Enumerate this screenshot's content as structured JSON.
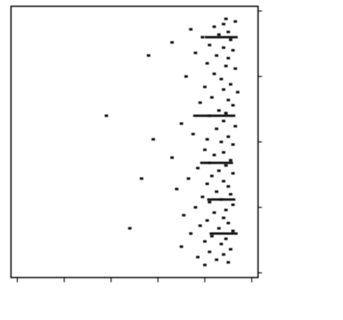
{
  "chart_data": {
    "type": "scatter",
    "orientation": "rotated-90",
    "title": "",
    "xlabel": "",
    "ylabel": "",
    "x_axis_tick_labels": [
      "",
      "",
      "",
      "",
      ""
    ],
    "y_axis_tick_labels": [
      "",
      "",
      "",
      "",
      "",
      ""
    ],
    "ylim": [
      0,
      5
    ],
    "xlim": [
      0,
      100
    ],
    "grid": false,
    "legend": "none",
    "colors": {
      "marks": "#111111",
      "frame": "#000000",
      "background": "#ffffff"
    },
    "series": [
      {
        "points": [
          {
            "x": 3,
            "y": 0.55
          },
          {
            "x": 4,
            "y": 0.35
          },
          {
            "x": 5,
            "y": 0.6
          },
          {
            "x": 6,
            "y": 0.8
          },
          {
            "x": 7,
            "y": 1.3
          },
          {
            "x": 8,
            "y": 0.5
          },
          {
            "x": 9,
            "y": 0.7
          },
          {
            "x": 10,
            "y": 1.05
          },
          {
            "x": 11,
            "y": 0.45
          },
          {
            "x": 12,
            "y": 1.7
          },
          {
            "x": 13,
            "y": 0.9
          },
          {
            "x": 14,
            "y": 0.6
          },
          {
            "x": 15,
            "y": 0.4
          },
          {
            "x": 16,
            "y": 1.2
          },
          {
            "x": 17,
            "y": 0.75
          },
          {
            "x": 18,
            "y": 0.5
          },
          {
            "x": 20,
            "y": 0.95
          },
          {
            "x": 21,
            "y": 0.55
          },
          {
            "x": 22,
            "y": 0.35
          },
          {
            "x": 24,
            "y": 0.8
          },
          {
            "x": 25,
            "y": 1.4
          },
          {
            "x": 26,
            "y": 0.65
          },
          {
            "x": 28,
            "y": 0.45
          },
          {
            "x": 29,
            "y": 1.0
          },
          {
            "x": 30,
            "y": 0.6
          },
          {
            "x": 31,
            "y": 0.3
          },
          {
            "x": 33,
            "y": 0.85
          },
          {
            "x": 34,
            "y": 0.5
          },
          {
            "x": 35,
            "y": 1.1
          },
          {
            "x": 36,
            "y": 0.4
          },
          {
            "x": 38,
            "y": 0.7
          },
          {
            "x": 39,
            "y": 0.55
          },
          {
            "x": 40,
            "y": 0.9
          },
          {
            "x": 42,
            "y": 0.6
          },
          {
            "x": 43,
            "y": 1.5
          },
          {
            "x": 44,
            "y": 0.35
          },
          {
            "x": 45,
            "y": 0.75
          },
          {
            "x": 47,
            "y": 1.25
          },
          {
            "x": 48,
            "y": 0.5
          },
          {
            "x": 49,
            "y": 0.95
          },
          {
            "x": 50,
            "y": 0.65
          },
          {
            "x": 51,
            "y": 0.4
          },
          {
            "x": 53,
            "y": 1.0
          },
          {
            "x": 54,
            "y": 0.6
          },
          {
            "x": 55,
            "y": 0.8
          },
          {
            "x": 56,
            "y": 1.7
          },
          {
            "x": 57,
            "y": 0.45
          },
          {
            "x": 58,
            "y": 0.9
          },
          {
            "x": 59,
            "y": 0.55
          },
          {
            "x": 60,
            "y": 1.15
          },
          {
            "x": 61,
            "y": 0.7
          },
          {
            "x": 62,
            "y": 0.4
          },
          {
            "x": 63,
            "y": 0.85
          },
          {
            "x": 64,
            "y": 1.35
          },
          {
            "x": 65,
            "y": 0.6
          },
          {
            "x": 66,
            "y": 0.95
          },
          {
            "x": 67,
            "y": 0.5
          },
          {
            "x": 68,
            "y": 1.6
          },
          {
            "x": 69,
            "y": 0.75
          },
          {
            "x": 70,
            "y": 0.45
          },
          {
            "x": 71,
            "y": 1.05
          },
          {
            "x": 72,
            "y": 0.65
          },
          {
            "x": 73,
            "y": 0.9
          },
          {
            "x": 74,
            "y": 0.4
          },
          {
            "x": 75,
            "y": 1.2
          },
          {
            "x": 76,
            "y": 0.55
          },
          {
            "x": 77,
            "y": 0.8
          },
          {
            "x": 78,
            "y": 1.45
          },
          {
            "x": 79,
            "y": 0.6
          },
          {
            "x": 80,
            "y": 0.95
          },
          {
            "x": 81,
            "y": 0.5
          },
          {
            "x": 82,
            "y": 1.1
          },
          {
            "x": 83,
            "y": 0.7
          },
          {
            "x": 84,
            "y": 0.4
          },
          {
            "x": 85,
            "y": 1.3
          },
          {
            "x": 86,
            "y": 0.85
          },
          {
            "x": 87,
            "y": 0.55
          },
          {
            "x": 88,
            "y": 1.0
          },
          {
            "x": 89,
            "y": 0.65
          },
          {
            "x": 90,
            "y": 1.5
          },
          {
            "x": 91,
            "y": 0.45
          },
          {
            "x": 92,
            "y": 0.9
          },
          {
            "x": 93,
            "y": 0.6
          },
          {
            "x": 94,
            "y": 1.15
          },
          {
            "x": 95,
            "y": 0.75
          },
          {
            "x": 96,
            "y": 0.5
          },
          {
            "x": 97,
            "y": 1.0
          },
          {
            "x": 17,
            "y": 2.2
          },
          {
            "x": 40,
            "y": 3.1
          },
          {
            "x": 64,
            "y": 2.35
          },
          {
            "x": 83,
            "y": 2.6
          },
          {
            "x": 49,
            "y": 2.1
          }
        ]
      }
    ],
    "dense_column_bars": [
      {
        "x": 10,
        "y0": 0.3,
        "y1": 1.0
      },
      {
        "x": 40,
        "y0": 0.35,
        "y1": 1.25
      },
      {
        "x": 58,
        "y0": 0.4,
        "y1": 1.1
      },
      {
        "x": 72,
        "y0": 0.35,
        "y1": 0.95
      },
      {
        "x": 85,
        "y0": 0.3,
        "y1": 0.9
      }
    ]
  }
}
